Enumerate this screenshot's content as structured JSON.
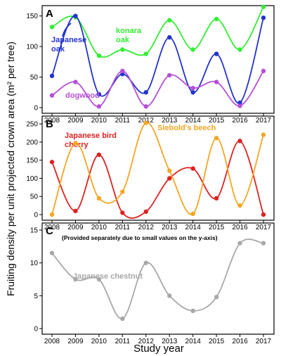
{
  "ylabel": "Fruiting density per unit projected crown area (m² per tree)",
  "xlabel": "Study year",
  "chart_data": [
    {
      "panel": "A",
      "type": "line",
      "ylim": [
        0,
        160
      ],
      "yticks": [
        0,
        50,
        100,
        150
      ],
      "categories": [
        "2008",
        "2009",
        "2010",
        "2011",
        "2012",
        "2013",
        "2014",
        "2015",
        "2016",
        "2017"
      ],
      "series": [
        {
          "name": "konara oak",
          "label_lines": [
            "konara",
            "oak"
          ],
          "color": "#33ee33",
          "values": [
            132,
            148,
            85,
            95,
            88,
            143,
            95,
            145,
            95,
            165
          ]
        },
        {
          "name": "Japanese oak",
          "label_lines": [
            "Japanese",
            "oak"
          ],
          "color": "#2233cc",
          "values": [
            52,
            150,
            22,
            55,
            25,
            115,
            25,
            88,
            8,
            147
          ]
        },
        {
          "name": "dogwood",
          "label_lines": [
            "dogwood"
          ],
          "color": "#b64fd9",
          "values": [
            20,
            42,
            2,
            60,
            2,
            53,
            32,
            42,
            3,
            60
          ]
        }
      ]
    },
    {
      "panel": "B",
      "type": "line",
      "ylim": [
        0,
        260
      ],
      "yticks": [
        0,
        50,
        100,
        150,
        200,
        250
      ],
      "categories": [
        "2008",
        "2009",
        "2010",
        "2011",
        "2012",
        "2013",
        "2014",
        "2015",
        "2016",
        "2017"
      ],
      "series": [
        {
          "name": "Japanese bird cherry",
          "label_lines": [
            "Japanese bird",
            "cherry"
          ],
          "color": "#dd2222",
          "values": [
            145,
            10,
            165,
            5,
            8,
            100,
            127,
            45,
            203,
            0
          ]
        },
        {
          "name": "Siebold's beech",
          "label_lines": [
            "Siebold's beech"
          ],
          "color": "#f5a623",
          "values": [
            0,
            197,
            45,
            63,
            253,
            121,
            2,
            211,
            25,
            220
          ]
        }
      ]
    },
    {
      "panel": "C",
      "type": "line",
      "ylim": [
        0,
        15
      ],
      "yticks": [
        0,
        5,
        10,
        15
      ],
      "note": "(Provided separately due to small values on the y-axis)",
      "categories": [
        "2008",
        "2009",
        "2010",
        "2011",
        "2012",
        "2013",
        "2014",
        "2015",
        "2016",
        "2017"
      ],
      "series": [
        {
          "name": "Japanese chestnut",
          "label_lines": [
            "Japanese chestnut"
          ],
          "color": "#a8a8a8",
          "values": [
            11.5,
            7.5,
            7.5,
            1.5,
            10,
            5,
            2.7,
            4.8,
            13,
            13
          ]
        }
      ]
    }
  ]
}
